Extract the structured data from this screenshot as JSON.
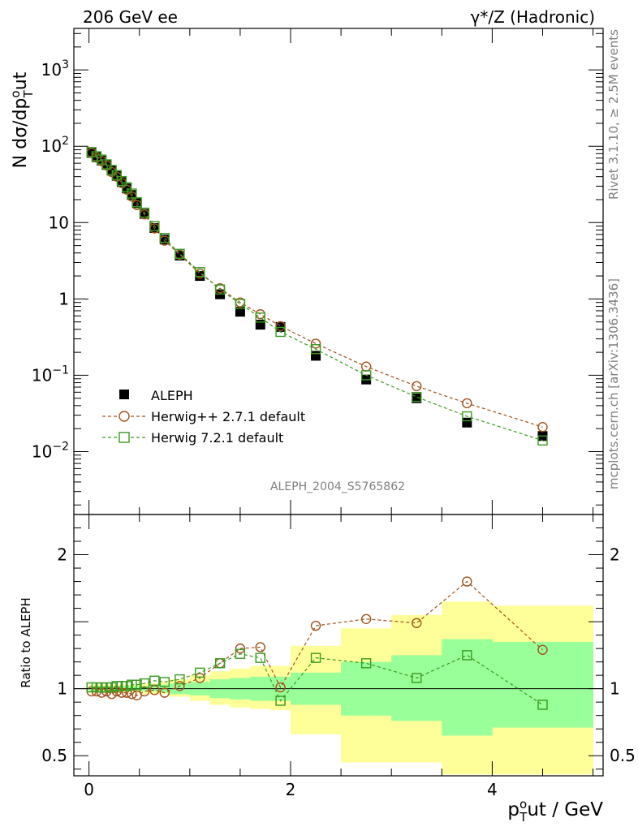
{
  "header": {
    "left": "206 GeV ee",
    "right": "γ*/Z (Hadronic)"
  },
  "side_text": {
    "rivet": "Rivet 3.1.10, ≥ 2.5M events",
    "site": "mcplots.cern.ch [arXiv:1306.3436]"
  },
  "analysis_label": "ALEPH_2004_S5765862",
  "chart_data": [
    {
      "type": "scatter",
      "name": "main",
      "ylabel": "N dσ/dp_T^out",
      "yscale": "log",
      "ylim": [
        0.0015,
        3500
      ],
      "xlim": [
        -0.15,
        5.1
      ],
      "y_ticks": [
        {
          "v": 1000,
          "base": "10",
          "exp": "3"
        },
        {
          "v": 100,
          "base": "10",
          "exp": "2"
        },
        {
          "v": 10,
          "base": "10",
          "exp": ""
        },
        {
          "v": 1,
          "base": "1",
          "exp": ""
        },
        {
          "v": 0.1,
          "base": "10",
          "exp": "−1"
        },
        {
          "v": 0.01,
          "base": "10",
          "exp": "−2"
        }
      ],
      "x": [
        0.025,
        0.075,
        0.125,
        0.175,
        0.225,
        0.275,
        0.325,
        0.375,
        0.425,
        0.475,
        0.55,
        0.65,
        0.75,
        0.9,
        1.1,
        1.3,
        1.5,
        1.7,
        1.9,
        2.25,
        2.75,
        3.25,
        3.75,
        4.5
      ],
      "series": [
        {
          "name": "ALEPH",
          "color": "#000000",
          "marker": "filled-square",
          "values": [
            82,
            72,
            65,
            57,
            48,
            41,
            34,
            28,
            23,
            18,
            13,
            8.5,
            6.0,
            3.7,
            2.0,
            1.15,
            0.68,
            0.46,
            0.43,
            0.18,
            0.088,
            0.05,
            0.024,
            0.016
          ]
        },
        {
          "name": "Herwig++ 2.7.1 default",
          "color": "#a0521d",
          "marker": "open-circle",
          "values": [
            82,
            71,
            64,
            56,
            46,
            40,
            33,
            27,
            22,
            17,
            12.8,
            8.4,
            5.8,
            3.8,
            2.15,
            1.38,
            0.9,
            0.63,
            0.44,
            0.26,
            0.13,
            0.072,
            0.043,
            0.021
          ]
        },
        {
          "name": "Herwig 7.2.1 default",
          "color": "#3a9a1e",
          "marker": "open-square",
          "values": [
            84,
            74,
            67,
            58,
            49,
            42,
            35,
            29,
            24,
            18.5,
            13.5,
            9.0,
            6.3,
            3.9,
            2.25,
            1.33,
            0.86,
            0.57,
            0.37,
            0.22,
            0.1,
            0.052,
            0.029,
            0.014
          ]
        }
      ]
    },
    {
      "type": "scatter",
      "name": "ratio",
      "xlabel": "p_T^out / GeV",
      "ylabel": "Ratio to ALEPH",
      "ylim": [
        0.35,
        2.3
      ],
      "xlim": [
        -0.15,
        5.1
      ],
      "x_ticks": [
        0,
        2,
        4
      ],
      "y_ticks": [
        0.5,
        1,
        2
      ],
      "x": [
        0.025,
        0.075,
        0.125,
        0.175,
        0.225,
        0.275,
        0.325,
        0.375,
        0.425,
        0.475,
        0.55,
        0.65,
        0.75,
        0.9,
        1.1,
        1.3,
        1.5,
        1.7,
        1.9,
        2.25,
        2.75,
        3.25,
        3.75,
        4.5
      ],
      "bands": {
        "edges": [
          0,
          0.05,
          0.1,
          0.15,
          0.2,
          0.25,
          0.3,
          0.35,
          0.4,
          0.45,
          0.5,
          0.6,
          0.7,
          0.8,
          1.0,
          1.2,
          1.4,
          1.6,
          1.8,
          2.0,
          2.5,
          3.0,
          3.5,
          4.0,
          5.0
        ],
        "yellow": [
          [
            0.97,
            1.03
          ],
          [
            0.97,
            1.03
          ],
          [
            0.97,
            1.03
          ],
          [
            0.97,
            1.03
          ],
          [
            0.97,
            1.03
          ],
          [
            0.97,
            1.03
          ],
          [
            0.97,
            1.03
          ],
          [
            0.97,
            1.03
          ],
          [
            0.97,
            1.03
          ],
          [
            0.97,
            1.03
          ],
          [
            0.96,
            1.04
          ],
          [
            0.96,
            1.04
          ],
          [
            0.96,
            1.05
          ],
          [
            0.94,
            1.07
          ],
          [
            0.91,
            1.1
          ],
          [
            0.88,
            1.13
          ],
          [
            0.86,
            1.15
          ],
          [
            0.85,
            1.17
          ],
          [
            0.84,
            1.17
          ],
          [
            0.66,
            1.32
          ],
          [
            0.45,
            1.45
          ],
          [
            0.45,
            1.55
          ],
          [
            0.36,
            1.65
          ],
          [
            0.36,
            1.62
          ]
        ],
        "green": [
          [
            0.98,
            1.02
          ],
          [
            0.98,
            1.02
          ],
          [
            0.98,
            1.02
          ],
          [
            0.98,
            1.02
          ],
          [
            0.98,
            1.02
          ],
          [
            0.98,
            1.02
          ],
          [
            0.98,
            1.02
          ],
          [
            0.98,
            1.02
          ],
          [
            0.98,
            1.02
          ],
          [
            0.98,
            1.02
          ],
          [
            0.98,
            1.02
          ],
          [
            0.98,
            1.03
          ],
          [
            0.97,
            1.03
          ],
          [
            0.96,
            1.04
          ],
          [
            0.95,
            1.05
          ],
          [
            0.93,
            1.07
          ],
          [
            0.92,
            1.08
          ],
          [
            0.91,
            1.09
          ],
          [
            0.91,
            1.09
          ],
          [
            0.88,
            1.12
          ],
          [
            0.8,
            1.2
          ],
          [
            0.76,
            1.25
          ],
          [
            0.65,
            1.37
          ],
          [
            0.71,
            1.35
          ]
        ]
      },
      "series": [
        {
          "name": "Herwig++ 2.7.1 default",
          "color": "#a0521d",
          "marker": "open-circle",
          "values": [
            0.98,
            0.98,
            0.97,
            0.98,
            0.96,
            0.98,
            0.97,
            0.97,
            0.96,
            0.95,
            0.98,
            0.99,
            0.97,
            1.02,
            1.08,
            1.19,
            1.3,
            1.31,
            1.01,
            1.47,
            1.52,
            1.49,
            1.8,
            1.29
          ]
        },
        {
          "name": "Herwig 7.2.1 default",
          "color": "#3a9a1e",
          "marker": "open-square",
          "values": [
            1.01,
            1.01,
            1.01,
            1.01,
            1.01,
            1.02,
            1.02,
            1.02,
            1.03,
            1.03,
            1.04,
            1.06,
            1.05,
            1.07,
            1.12,
            1.19,
            1.26,
            1.23,
            0.91,
            1.23,
            1.19,
            1.08,
            1.25,
            0.88
          ]
        }
      ]
    }
  ]
}
